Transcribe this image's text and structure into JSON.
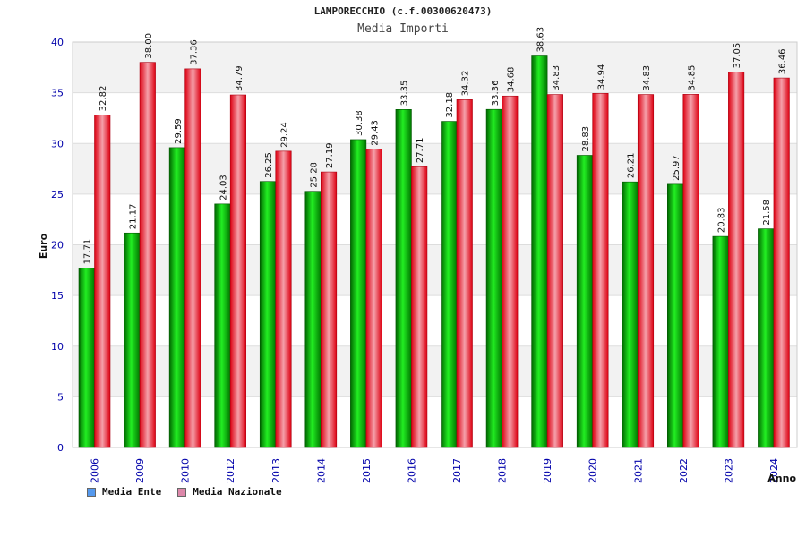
{
  "chart_data": {
    "type": "bar",
    "title": "LAMPORECCHIO (c.f.00300620473)",
    "subtitle": "Media Importi",
    "xlabel": "Anno",
    "ylabel": "Euro",
    "ylim": [
      0,
      40
    ],
    "yticks": [
      "0",
      "5",
      "10",
      "15",
      "20",
      "25",
      "30",
      "35",
      "40"
    ],
    "categories": [
      "2006",
      "2009",
      "2010",
      "2012",
      "2013",
      "2014",
      "2015",
      "2016",
      "2017",
      "2018",
      "2019",
      "2020",
      "2021",
      "2022",
      "2023",
      "2024"
    ],
    "series": [
      {
        "name": "Media Ente",
        "values": [
          17.71,
          21.17,
          29.59,
          24.03,
          26.25,
          25.28,
          30.38,
          33.35,
          32.18,
          33.36,
          38.63,
          28.83,
          26.21,
          25.97,
          20.83,
          21.58
        ],
        "labels": [
          "17.71",
          "21.17",
          "29.59",
          "24.03",
          "26.25",
          "25.28",
          "30.38",
          "33.35",
          "32.18",
          "33.36",
          "38.63",
          "28.83",
          "26.21",
          "25.97",
          "20.83",
          "21.58"
        ]
      },
      {
        "name": "Media Nazionale",
        "values": [
          32.82,
          38.0,
          37.36,
          34.79,
          29.24,
          27.19,
          29.43,
          27.71,
          34.32,
          34.68,
          34.83,
          34.94,
          34.83,
          34.85,
          37.05,
          36.46
        ],
        "labels": [
          "32.82",
          "38.00",
          "37.36",
          "34.79",
          "29.24",
          "27.19",
          "29.43",
          "27.71",
          "34.32",
          "34.68",
          "34.83",
          "34.94",
          "34.83",
          "34.85",
          "37.05",
          "36.46"
        ]
      }
    ],
    "colors": {
      "ente": "#00bb00",
      "nazionale": "#ee1122",
      "axis": "#0000aa",
      "legend_ente": "#5599ee",
      "legend_nazionale": "#dd88aa"
    },
    "grid": true,
    "legend_position": "bottom-left"
  }
}
